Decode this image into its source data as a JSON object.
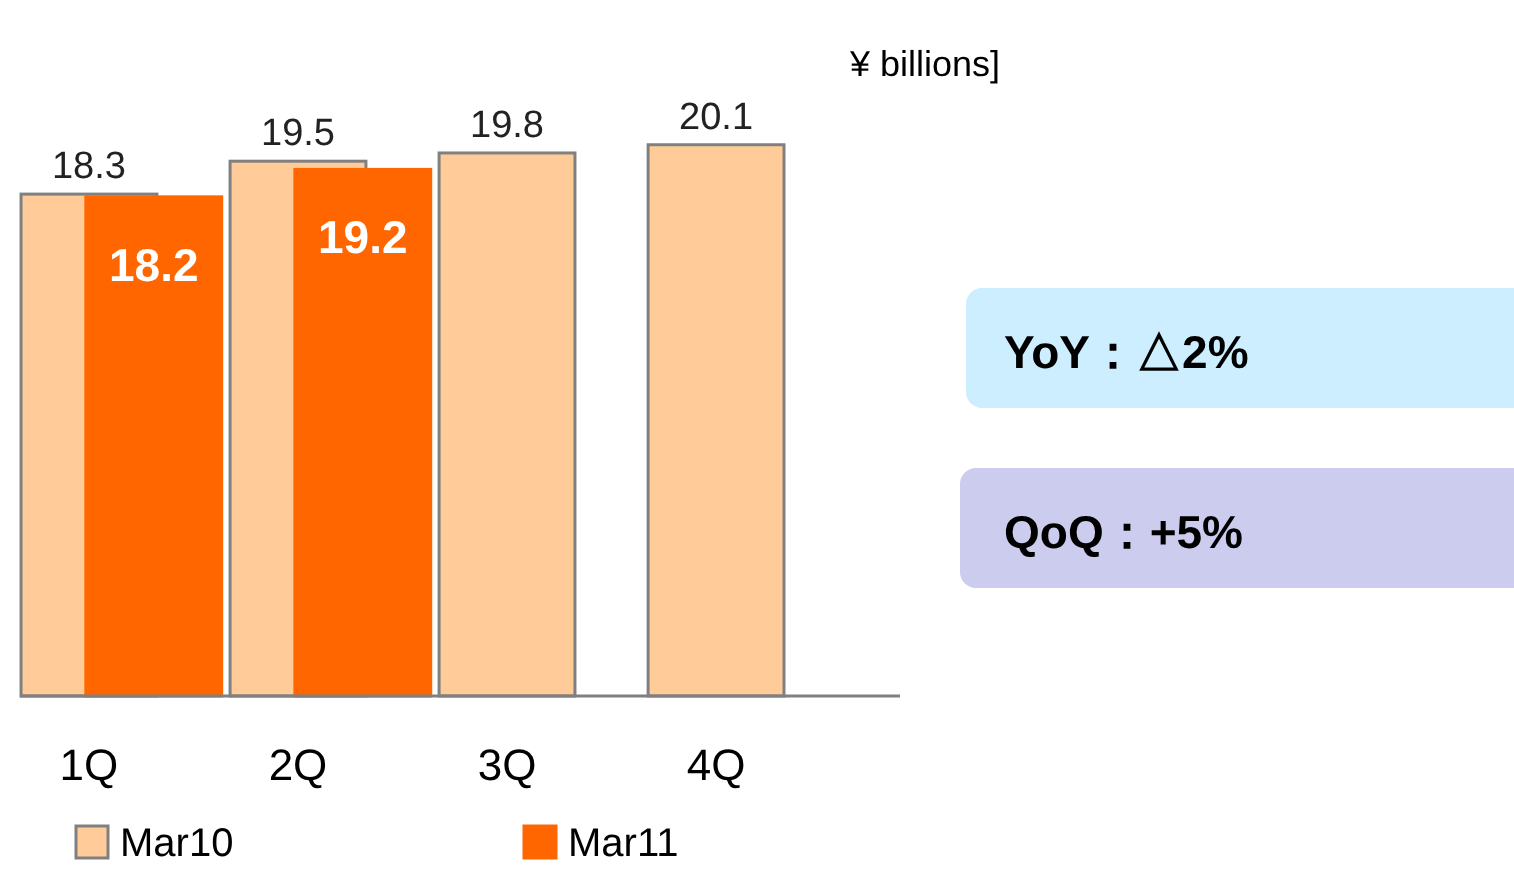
{
  "chart_data": {
    "type": "bar",
    "categories": [
      "1Q",
      "2Q",
      "3Q",
      "4Q"
    ],
    "series": [
      {
        "name": "Mar10",
        "color": "#ffcc99",
        "values": [
          18.3,
          19.5,
          19.8,
          20.1
        ]
      },
      {
        "name": "Mar11",
        "color": "#ff6600",
        "values": [
          18.2,
          19.2,
          null,
          null
        ]
      }
    ],
    "tick_labels": "x",
    "data_labels": true,
    "legend": "bottom",
    "annotations": [
      "¥ billions]",
      "YoY：△2%",
      "QoQ：+5%"
    ]
  }
}
